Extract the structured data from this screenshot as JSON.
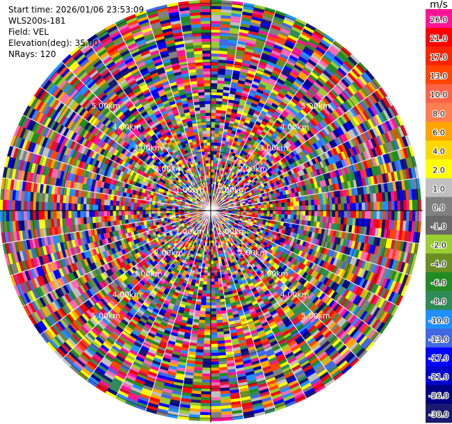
{
  "info": {
    "start_time": "Start time: 2026/01/06 23:53:09",
    "instrument": "WLS200s-181",
    "field": "Field: VEL",
    "elevation": "Elevation(deg): 35.00",
    "nrays": "NRays: 120"
  },
  "colorbar": {
    "unit": "m/s",
    "levels": [
      {
        "label": "26.0",
        "color": "#ff1493"
      },
      {
        "label": "21.0",
        "color": "#ff0000"
      },
      {
        "label": "17.0",
        "color": "#ff2400"
      },
      {
        "label": "13.0",
        "color": "#ff4500"
      },
      {
        "label": "10.0",
        "color": "#ff6347"
      },
      {
        "label": "8.0",
        "color": "#ff7f50"
      },
      {
        "label": "6.0",
        "color": "#ffa500"
      },
      {
        "label": "4.0",
        "color": "#ffd700"
      },
      {
        "label": "2.0",
        "color": "#ffff00"
      },
      {
        "label": "1.0",
        "color": "#c0c0c0"
      },
      {
        "label": "0.0",
        "color": "#808080"
      },
      {
        "label": "-1.0",
        "color": "#696969"
      },
      {
        "label": "-2.0",
        "color": "#9acd32"
      },
      {
        "label": "-4.0",
        "color": "#6b8e23"
      },
      {
        "label": "-6.0",
        "color": "#228b22"
      },
      {
        "label": "-8.0",
        "color": "#2e8b57"
      },
      {
        "label": "-10.0",
        "color": "#1e90ff"
      },
      {
        "label": "-13.0",
        "color": "#4169e1"
      },
      {
        "label": "-17.0",
        "color": "#0000ff"
      },
      {
        "label": "-21.0",
        "color": "#0000cd"
      },
      {
        "label": "-26.0",
        "color": "#000080"
      },
      {
        "label": "-30.0",
        "color": "#191970"
      }
    ]
  },
  "chart_data": {
    "type": "ppi",
    "field": "VEL",
    "units": "m/s",
    "nrays": 120,
    "max_range_km": 7.1,
    "range_rings_km": [
      1,
      2,
      3,
      4,
      5,
      6,
      7
    ],
    "ring_labels": [
      "1.00km",
      "2.00km",
      "3.00km",
      "4.00km",
      "5.00km"
    ],
    "values_note_pattern": "noise",
    "palette_order": [
      "#ff1493",
      "#ff0000",
      "#ff4500",
      "#ffa500",
      "#ffff00",
      "#c0c0c0",
      "#808080",
      "#9acd32",
      "#6b8e23",
      "#228b22",
      "#2e8b57",
      "#1e90ff",
      "#4169e1",
      "#0000ff",
      "#00008b",
      "#191970",
      "#ff69b4",
      "#dc143c"
    ]
  }
}
